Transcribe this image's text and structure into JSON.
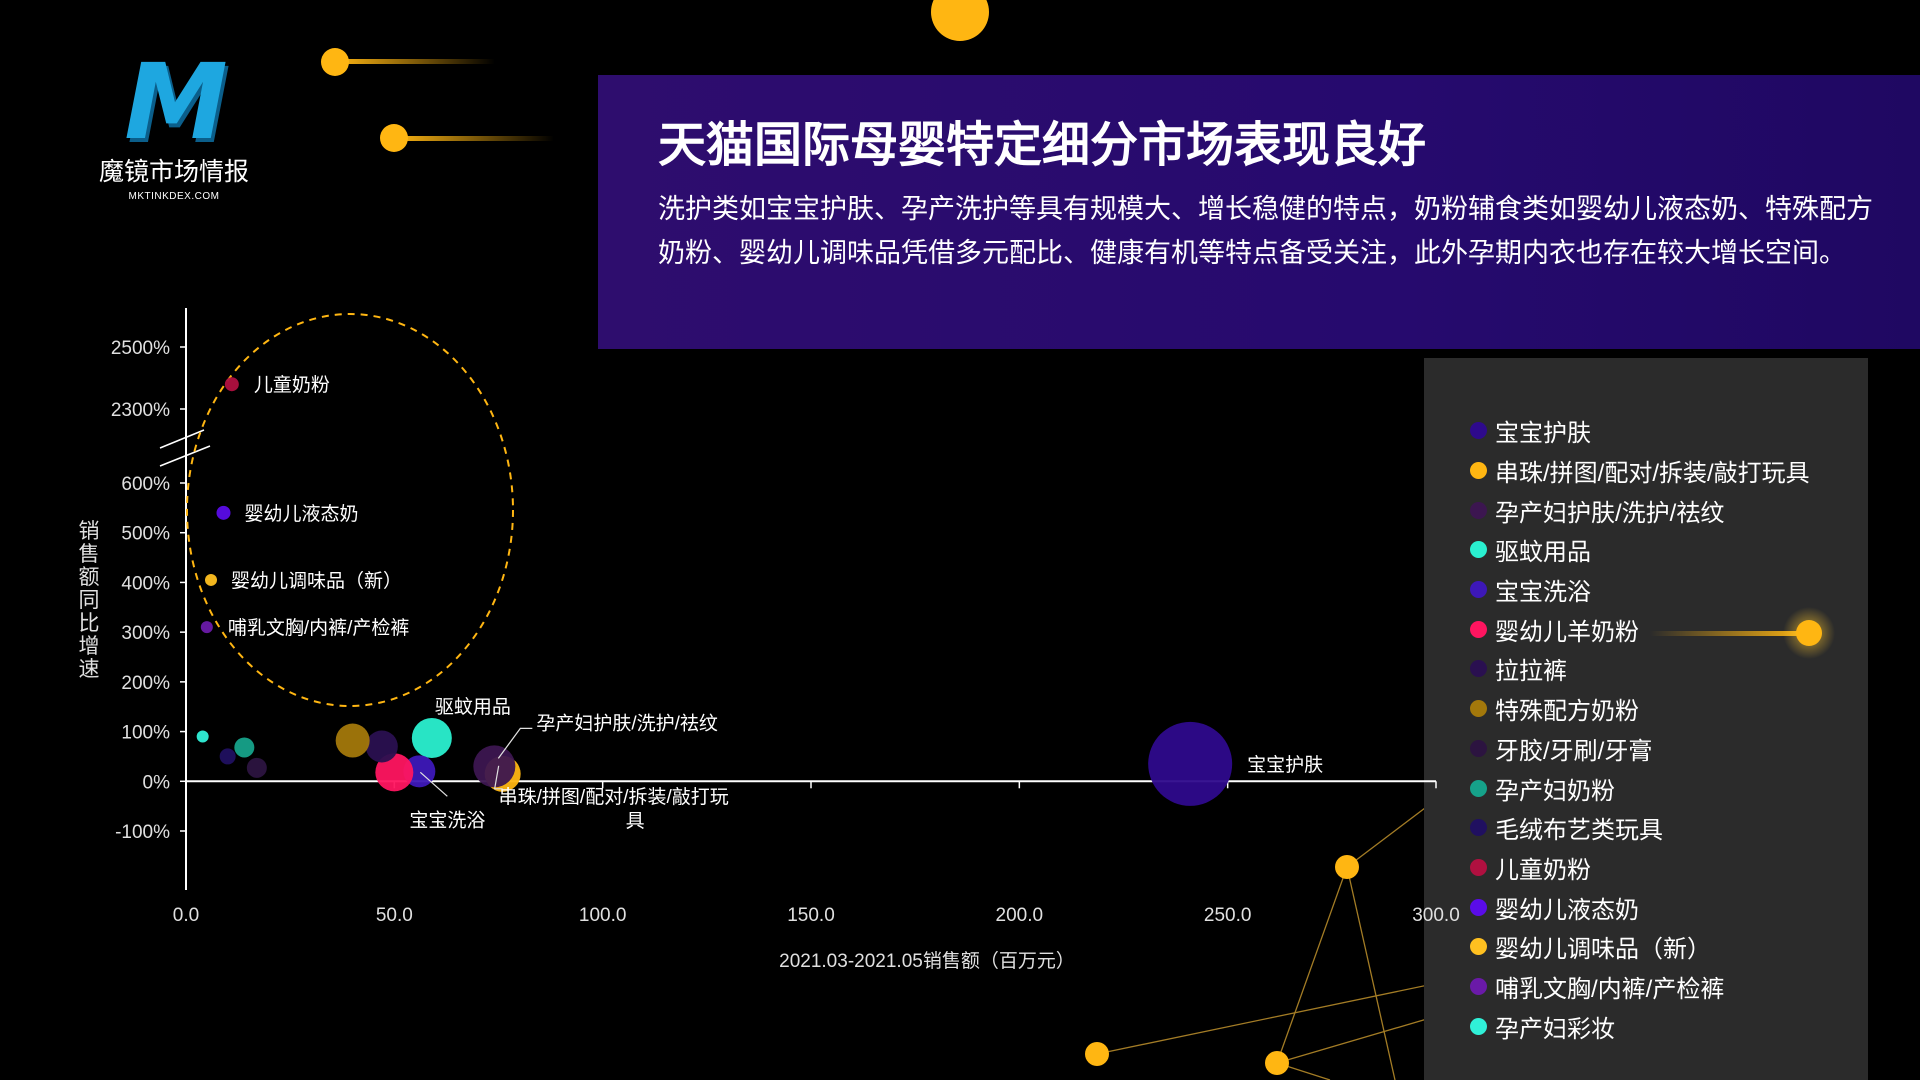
{
  "logo": {
    "cn": "魔镜市场情报",
    "en": "MKTINKDEX.COM",
    "mark": "M"
  },
  "header": {
    "title": "天猫国际母婴特定细分市场表现良好",
    "description": "洗护类如宝宝护肤、孕产洗护等具有规模大、增长稳健的特点，奶粉辅食类如婴幼儿液态奶、特殊配方奶粉、婴幼儿调味品凭借多元配比、健康有机等特点备受关注，此外孕期内衣也存在较大增长空间。"
  },
  "chart_data": {
    "type": "scatter",
    "xlabel": "2021.03-2021.05销售额（百万元）",
    "ylabel": "销售额同比增速",
    "x_ticks": [
      "0.0",
      "50.0",
      "100.0",
      "150.0",
      "200.0",
      "250.0",
      "300.0"
    ],
    "y_ticks_lower": [
      "-100%",
      "0%",
      "100%",
      "200%",
      "300%",
      "400%",
      "500%",
      "600%"
    ],
    "y_ticks_upper": [
      "2300%",
      "2500%"
    ],
    "xlim": [
      0,
      300
    ],
    "ylim_lower": [
      -100,
      600
    ],
    "ylim_upper": [
      2300,
      2500
    ],
    "y_axis_break": true,
    "highlight": "dashed ellipse around high-growth categories",
    "series": [
      {
        "name": "宝宝护肤",
        "x": 241,
        "y": 35,
        "size": 42,
        "color": "#2e0a8c",
        "label": "宝宝护肤"
      },
      {
        "name": "串珠/拼图/配对/拆装/敲打玩具",
        "x": 76,
        "y": 15,
        "size": 18,
        "color": "#ffb612",
        "label": "串珠/拼图/配对/拆装/敲打玩具"
      },
      {
        "name": "孕产妇护肤/洗护/祛纹",
        "x": 74,
        "y": 30,
        "size": 21,
        "color": "#3c1650",
        "label": "孕产妇护肤/洗护/祛纹"
      },
      {
        "name": "驱蚊用品",
        "x": 59,
        "y": 87,
        "size": 20,
        "color": "#2af0d0",
        "label": "驱蚊用品"
      },
      {
        "name": "宝宝洗浴",
        "x": 56,
        "y": 20,
        "size": 16,
        "color": "#3d18b8",
        "label": "宝宝洗浴"
      },
      {
        "name": "婴幼儿羊奶粉",
        "x": 50,
        "y": 18,
        "size": 19,
        "color": "#ff1560"
      },
      {
        "name": "拉拉裤",
        "x": 47,
        "y": 70,
        "size": 16,
        "color": "#2a1050"
      },
      {
        "name": "特殊配方奶粉",
        "x": 40,
        "y": 82,
        "size": 17,
        "color": "#a3780b"
      },
      {
        "name": "牙胶/牙刷/牙膏",
        "x": 17,
        "y": 27,
        "size": 10,
        "color": "#2c1440"
      },
      {
        "name": "孕产妇奶粉",
        "x": 14,
        "y": 68,
        "size": 10,
        "color": "#16a28a"
      },
      {
        "name": "毛绒布艺类玩具",
        "x": 10,
        "y": 50,
        "size": 8,
        "color": "#201060"
      },
      {
        "name": "儿童奶粉",
        "x": 11,
        "y": 2380,
        "size": 7,
        "color": "#b01040",
        "label": "儿童奶粉"
      },
      {
        "name": "婴幼儿液态奶",
        "x": 9,
        "y": 540,
        "size": 7,
        "color": "#5a0ce8",
        "label": "婴幼儿液态奶"
      },
      {
        "name": "婴幼儿调味品（新）",
        "x": 6,
        "y": 405,
        "size": 6,
        "color": "#ffc020",
        "label": "婴幼儿调味品（新）"
      },
      {
        "name": "哺乳文胸/内裤/产检裤",
        "x": 5,
        "y": 310,
        "size": 6,
        "color": "#6a1aa8",
        "label": "哺乳文胸/内裤/产检裤"
      },
      {
        "name": "孕产妇彩妆",
        "x": 4,
        "y": 90,
        "size": 6,
        "color": "#30f0d8"
      }
    ]
  }
}
